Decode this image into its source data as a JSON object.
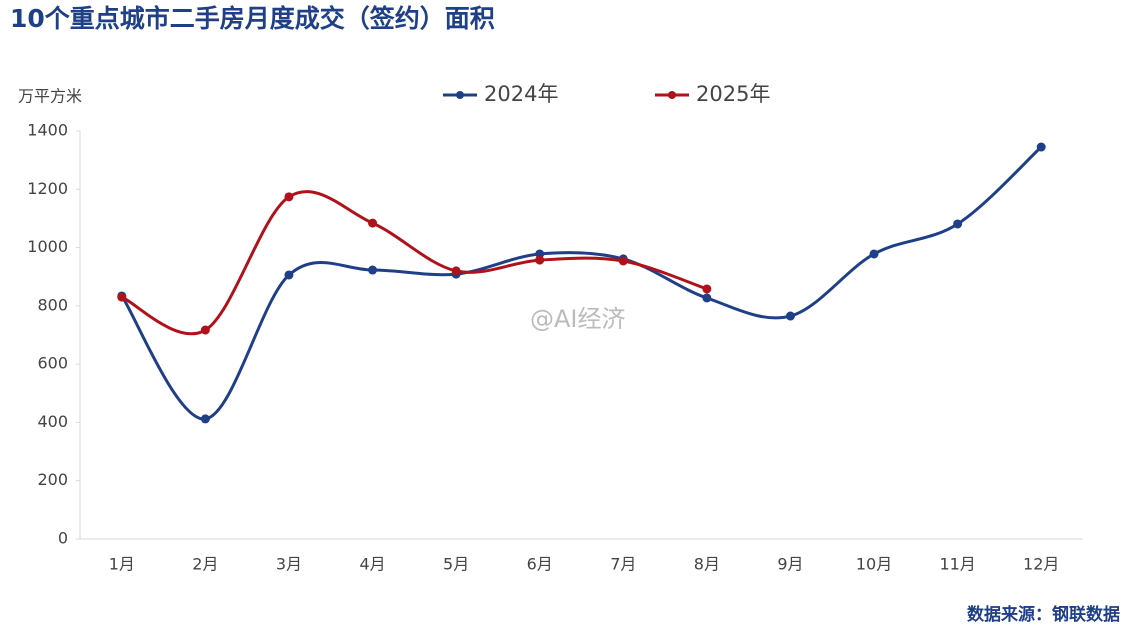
{
  "chart_data": {
    "type": "line",
    "title": "10个重点城市二手房月度成交（签约）面积",
    "y_label": "万平方米",
    "source": "数据来源：钢联数据",
    "watermark": "@AI经济",
    "categories": [
      "1月",
      "2月",
      "3月",
      "4月",
      "5月",
      "6月",
      "7月",
      "8月",
      "9月",
      "10月",
      "11月",
      "12月"
    ],
    "series": [
      {
        "name": "2024年",
        "color": "#1f3f86",
        "values": [
          834,
          412,
          906,
          923,
          909,
          978,
          961,
          827,
          765,
          978,
          1081,
          1345
        ]
      },
      {
        "name": "2025年",
        "color": "#b0121b",
        "values": [
          830,
          717,
          1174,
          1084,
          920,
          957,
          954,
          858,
          null,
          null,
          null,
          null
        ]
      }
    ],
    "ylim": [
      0,
      1400
    ],
    "yticks": [
      0,
      200,
      400,
      600,
      800,
      1000,
      1200,
      1400
    ],
    "smooth": true,
    "legend": "top"
  }
}
